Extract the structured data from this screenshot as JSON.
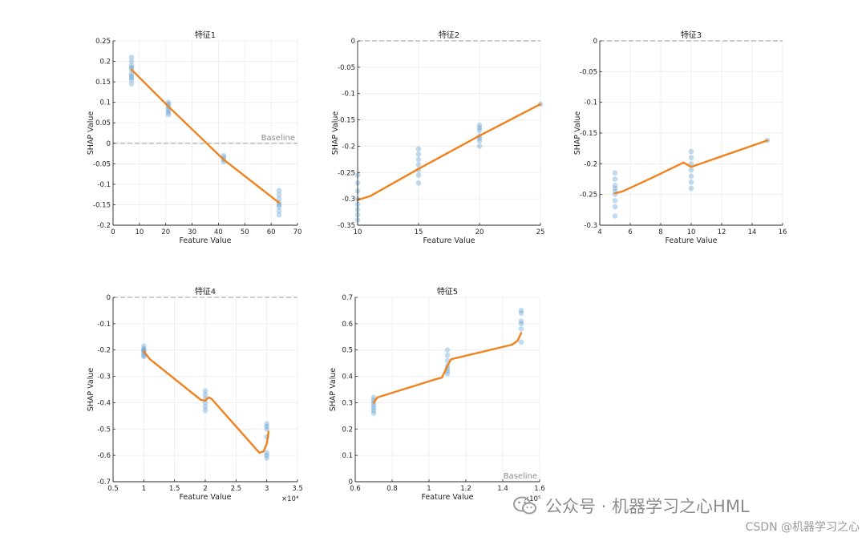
{
  "colors": {
    "line": "#f0821e",
    "points": "#4f94cf",
    "axis": "#262626",
    "grid": "#ebebeb",
    "baseline": "#9b9b9b"
  },
  "labels": {
    "xlabel": "Feature Value",
    "ylabel": "SHAP Value",
    "baseline": "Baseline"
  },
  "watermark": {
    "wechat_icon": "wechat-icon",
    "text": "公众号 · 机器学习之心HML",
    "csdn": "CSDN @机器学习之心"
  },
  "chart_data": [
    {
      "type": "scatter",
      "title": "特征1",
      "xlabel": "Feature Value",
      "ylabel": "SHAP Value",
      "xlim": [
        0,
        70
      ],
      "ylim": [
        -0.2,
        0.25
      ],
      "xticks": [
        0,
        10,
        20,
        30,
        40,
        50,
        60,
        70
      ],
      "xtick_labels": [
        "0",
        "10",
        "20",
        "30",
        "40",
        "50",
        "60",
        "70"
      ],
      "yticks": [
        -0.2,
        -0.15,
        -0.1,
        -0.05,
        0,
        0.05,
        0.1,
        0.15,
        0.2,
        0.25
      ],
      "ytick_labels": [
        "-0.2",
        "-0.15",
        "-0.1",
        "-0.05",
        "0",
        "0.05",
        "0.1",
        "0.15",
        "0.2",
        "0.25"
      ],
      "exponent_label": "",
      "baseline": 0,
      "baseline_label": "Baseline",
      "points": [
        {
          "x": 7,
          "ys": [
            0.21,
            0.2,
            0.19,
            0.185,
            0.18,
            0.17,
            0.165,
            0.16,
            0.155,
            0.145
          ]
        },
        {
          "x": 21,
          "ys": [
            0.1,
            0.095,
            0.09,
            0.085,
            0.08,
            0.075,
            0.07
          ]
        },
        {
          "x": 42,
          "ys": [
            -0.03,
            -0.035,
            -0.04,
            -0.045
          ]
        },
        {
          "x": 63,
          "ys": [
            -0.115,
            -0.125,
            -0.135,
            -0.145,
            -0.15,
            -0.155,
            -0.165,
            -0.175
          ]
        }
      ],
      "fit": [
        [
          7,
          0.18
        ],
        [
          21,
          0.09
        ],
        [
          42,
          -0.04
        ],
        [
          63,
          -0.145
        ]
      ]
    },
    {
      "type": "scatter",
      "title": "特征2",
      "xlabel": "Feature Value",
      "ylabel": "SHAP Value",
      "xlim": [
        10,
        25
      ],
      "ylim": [
        -0.35,
        0
      ],
      "xticks": [
        10,
        15,
        20,
        25
      ],
      "xtick_labels": [
        "10",
        "15",
        "20",
        "25"
      ],
      "yticks": [
        -0.35,
        -0.3,
        -0.25,
        -0.2,
        -0.15,
        -0.1,
        -0.05,
        0
      ],
      "ytick_labels": [
        "-0.35",
        "-0.3",
        "-0.25",
        "-0.2",
        "-0.15",
        "-0.1",
        "-0.05",
        "0"
      ],
      "exponent_label": "",
      "baseline": 0,
      "baseline_label": "",
      "points": [
        {
          "x": 10,
          "ys": [
            -0.255,
            -0.27,
            -0.285,
            -0.3,
            -0.31,
            -0.32,
            -0.33,
            -0.34
          ]
        },
        {
          "x": 15,
          "ys": [
            -0.205,
            -0.215,
            -0.225,
            -0.235,
            -0.245,
            -0.255,
            -0.27
          ]
        },
        {
          "x": 20,
          "ys": [
            -0.16,
            -0.165,
            -0.17,
            -0.18,
            -0.185,
            -0.19,
            -0.2
          ]
        },
        {
          "x": 25,
          "ys": [
            -0.12
          ]
        }
      ],
      "fit": [
        [
          10,
          -0.302
        ],
        [
          11,
          -0.295
        ],
        [
          15,
          -0.243
        ],
        [
          20,
          -0.18
        ],
        [
          25,
          -0.12
        ]
      ]
    },
    {
      "type": "scatter",
      "title": "特征3",
      "xlabel": "Feature Value",
      "ylabel": "SHAP Value",
      "xlim": [
        4,
        16
      ],
      "ylim": [
        -0.3,
        0
      ],
      "xticks": [
        4,
        6,
        8,
        10,
        12,
        14,
        16
      ],
      "xtick_labels": [
        "4",
        "6",
        "8",
        "10",
        "12",
        "14",
        "16"
      ],
      "yticks": [
        -0.3,
        -0.25,
        -0.2,
        -0.15,
        -0.1,
        -0.05,
        0
      ],
      "ytick_labels": [
        "-0.3",
        "-0.25",
        "-0.2",
        "-0.15",
        "-0.1",
        "-0.05",
        "0"
      ],
      "exponent_label": "",
      "baseline": 0,
      "baseline_label": "",
      "points": [
        {
          "x": 5,
          "ys": [
            -0.215,
            -0.225,
            -0.235,
            -0.24,
            -0.245,
            -0.25,
            -0.26,
            -0.27,
            -0.285
          ]
        },
        {
          "x": 10,
          "ys": [
            -0.18,
            -0.19,
            -0.2,
            -0.21,
            -0.22,
            -0.23,
            -0.24
          ]
        },
        {
          "x": 15,
          "ys": [
            -0.162
          ]
        }
      ],
      "fit": [
        [
          5,
          -0.248
        ],
        [
          5.5,
          -0.245
        ],
        [
          7.5,
          -0.222
        ],
        [
          9.5,
          -0.198
        ],
        [
          10,
          -0.205
        ],
        [
          15,
          -0.162
        ]
      ]
    },
    {
      "type": "scatter",
      "title": "特征4",
      "xlabel": "Feature Value",
      "ylabel": "SHAP Value",
      "xlim": [
        5000,
        35000
      ],
      "ylim": [
        -0.7,
        0
      ],
      "xticks": [
        5000,
        10000,
        15000,
        20000,
        25000,
        30000,
        35000
      ],
      "xtick_labels": [
        "0.5",
        "1",
        "1.5",
        "2",
        "2.5",
        "3",
        "3.5"
      ],
      "yticks": [
        -0.7,
        -0.6,
        -0.5,
        -0.4,
        -0.3,
        -0.2,
        -0.1,
        0
      ],
      "ytick_labels": [
        "-0.7",
        "-0.6",
        "-0.5",
        "-0.4",
        "-0.3",
        "-0.2",
        "-0.1",
        "0"
      ],
      "exponent_label": "×10⁴",
      "baseline": 0,
      "baseline_label": "",
      "points": [
        {
          "x": 10000,
          "ys": [
            -0.185,
            -0.195,
            -0.2,
            -0.205,
            -0.21,
            -0.22,
            -0.225
          ]
        },
        {
          "x": 20000,
          "ys": [
            -0.355,
            -0.37,
            -0.385,
            -0.4,
            -0.415,
            -0.43
          ]
        },
        {
          "x": 30000,
          "ys": [
            -0.48,
            -0.49,
            -0.5,
            -0.53,
            -0.59,
            -0.6,
            -0.61
          ]
        }
      ],
      "fit": [
        [
          10000,
          -0.205
        ],
        [
          11000,
          -0.235
        ],
        [
          19300,
          -0.39
        ],
        [
          20000,
          -0.392
        ],
        [
          20500,
          -0.38
        ],
        [
          21000,
          -0.385
        ],
        [
          28800,
          -0.59
        ],
        [
          29500,
          -0.585
        ],
        [
          30000,
          -0.555
        ],
        [
          30300,
          -0.51
        ]
      ]
    },
    {
      "type": "scatter",
      "title": "特征5",
      "xlabel": "Feature Value",
      "ylabel": "SHAP Value",
      "xlim": [
        60000,
        160000
      ],
      "ylim": [
        0,
        0.7
      ],
      "xticks": [
        60000,
        80000,
        100000,
        120000,
        140000,
        160000
      ],
      "xtick_labels": [
        "0.6",
        "0.8",
        "1",
        "1.2",
        "1.4",
        "1.6"
      ],
      "yticks": [
        0,
        0.1,
        0.2,
        0.3,
        0.4,
        0.5,
        0.6,
        0.7
      ],
      "ytick_labels": [
        "0",
        "0.1",
        "0.2",
        "0.3",
        "0.4",
        "0.5",
        "0.6",
        "0.7"
      ],
      "exponent_label": "×10⁵",
      "baseline": 0,
      "baseline_label": "Baseline",
      "points": [
        {
          "x": 70000,
          "ys": [
            0.32,
            0.31,
            0.3,
            0.29,
            0.28,
            0.27,
            0.26
          ]
        },
        {
          "x": 110000,
          "ys": [
            0.5,
            0.48,
            0.46,
            0.44,
            0.43,
            0.42,
            0.41
          ]
        },
        {
          "x": 150000,
          "ys": [
            0.65,
            0.64,
            0.61,
            0.6,
            0.58,
            0.53
          ]
        }
      ],
      "fit": [
        [
          70000,
          0.3
        ],
        [
          72000,
          0.32
        ],
        [
          104000,
          0.39
        ],
        [
          107000,
          0.395
        ],
        [
          110000,
          0.44
        ],
        [
          112000,
          0.465
        ],
        [
          145000,
          0.52
        ],
        [
          148000,
          0.535
        ],
        [
          150000,
          0.565
        ]
      ]
    }
  ]
}
